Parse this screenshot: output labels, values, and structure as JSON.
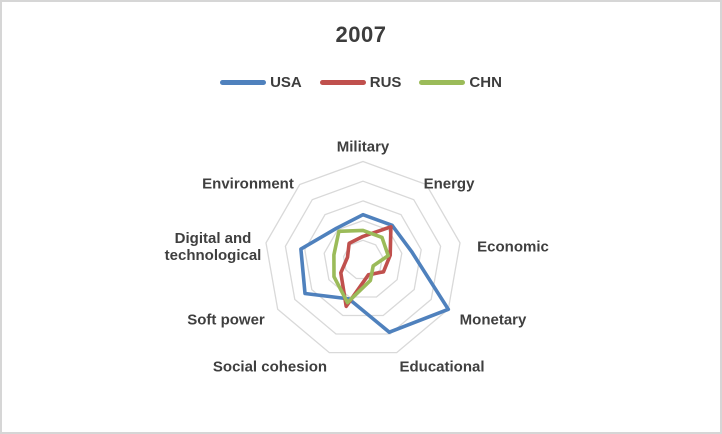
{
  "title": "2007",
  "legend": {
    "items": [
      {
        "label": "USA",
        "color": "#4F81BD"
      },
      {
        "label": "RUS",
        "color": "#C0504D"
      },
      {
        "label": "CHN",
        "color": "#9BBB59"
      }
    ]
  },
  "chart_data": {
    "type": "radar",
    "title": "2007",
    "categories": [
      "Military",
      "Energy",
      "Economic",
      "Monetary",
      "Educational",
      "Social cohesion",
      "Soft power",
      "Digital and technological",
      "Environment"
    ],
    "series": [
      {
        "name": "USA",
        "color": "#4F81BD",
        "values": [
          2.3,
          2.3,
          2.5,
          5.0,
          3.9,
          2.1,
          3.4,
          3.2,
          2.1
        ]
      },
      {
        "name": "RUS",
        "color": "#C0504D",
        "values": [
          1.2,
          2.2,
          1.4,
          1.2,
          0.8,
          2.5,
          1.3,
          0.8,
          1.1
        ]
      },
      {
        "name": "CHN",
        "color": "#9BBB59",
        "values": [
          1.5,
          1.5,
          1.3,
          0.6,
          1.1,
          2.3,
          1.7,
          1.5,
          1.9
        ]
      }
    ],
    "scale": {
      "min": 0,
      "max": 5,
      "rings": 5
    },
    "grid": true,
    "grid_color": "#D9D9D9",
    "spokes": false,
    "legend_position": "top",
    "axis_start": "top",
    "direction": "clockwise"
  }
}
